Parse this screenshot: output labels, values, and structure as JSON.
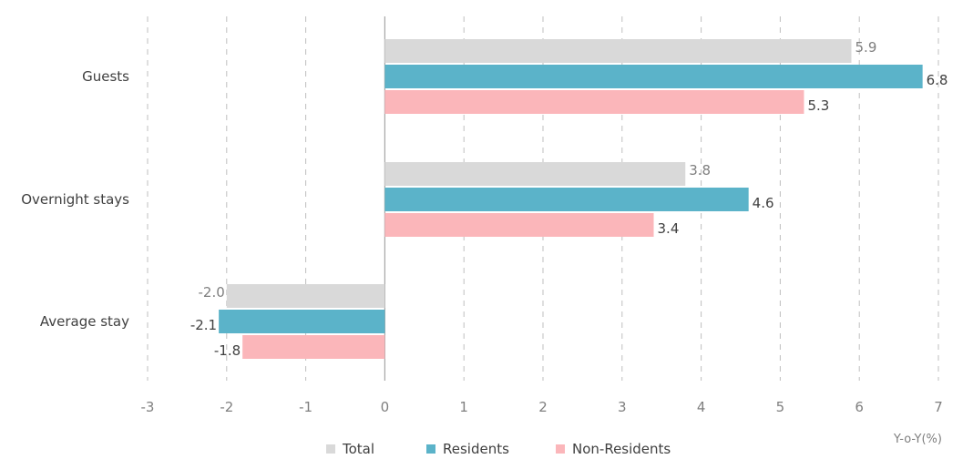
{
  "chart_data": {
    "type": "bar",
    "orientation": "horizontal",
    "categories": [
      "Guests",
      "Overnight stays",
      "Average stay"
    ],
    "series": [
      {
        "name": "Total",
        "values": [
          5.9,
          3.8,
          -2.0
        ],
        "color": "#d9d9d9"
      },
      {
        "name": "Residents",
        "values": [
          6.8,
          4.6,
          -2.1
        ],
        "color": "#5bb3c9"
      },
      {
        "name": "Non-Residents",
        "values": [
          5.3,
          3.4,
          -1.8
        ],
        "color": "#fbb6ba"
      }
    ],
    "value_labels": [
      [
        "5.9",
        "3.8",
        "-2.0"
      ],
      [
        "6.8",
        "4.6",
        "-2.1"
      ],
      [
        "5.3",
        "3.4",
        "-1.8"
      ]
    ],
    "xlim": [
      -3,
      7
    ],
    "xticks": [
      "-3",
      "-2",
      "-1",
      "0",
      "1",
      "2",
      "3",
      "4",
      "5",
      "6",
      "7"
    ],
    "xlabel": "Y-o-Y(%)",
    "grid": "vertical-dashed",
    "legend": "bottom-center"
  }
}
